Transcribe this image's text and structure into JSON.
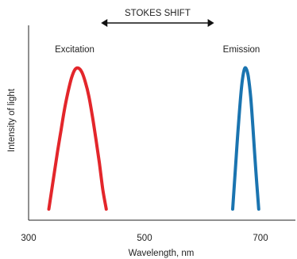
{
  "chart_data": {
    "type": "line",
    "title": "",
    "xlabel": "Wavelength, nm",
    "ylabel": "Intensity of light",
    "xlim": [
      300,
      700
    ],
    "x_ticks": [
      300,
      500,
      700
    ],
    "ylim": [
      0,
      1
    ],
    "y_ticks": [],
    "grid": false,
    "legend": "none",
    "series": [
      {
        "name": "Excitation",
        "color": "#e3262b",
        "x": [
          335,
          343,
          350,
          356,
          362,
          368,
          374,
          380,
          386,
          392,
          398,
          404,
          410,
          416,
          422,
          428,
          434
        ],
        "y": [
          0.0,
          0.22,
          0.41,
          0.56,
          0.71,
          0.83,
          0.93,
          0.99,
          1.0,
          0.97,
          0.9,
          0.8,
          0.66,
          0.5,
          0.33,
          0.14,
          0.0
        ]
      },
      {
        "name": "Emission",
        "color": "#1a74b0",
        "x": [
          652,
          657,
          662,
          667,
          670,
          673,
          676,
          679,
          683,
          687,
          692,
          697
        ],
        "y": [
          0.0,
          0.3,
          0.6,
          0.85,
          0.95,
          1.0,
          0.99,
          0.94,
          0.8,
          0.58,
          0.27,
          0.0
        ]
      }
    ],
    "annotation": {
      "text": "STOKES SHIFT",
      "from_x": 425,
      "to_x": 620
    }
  }
}
